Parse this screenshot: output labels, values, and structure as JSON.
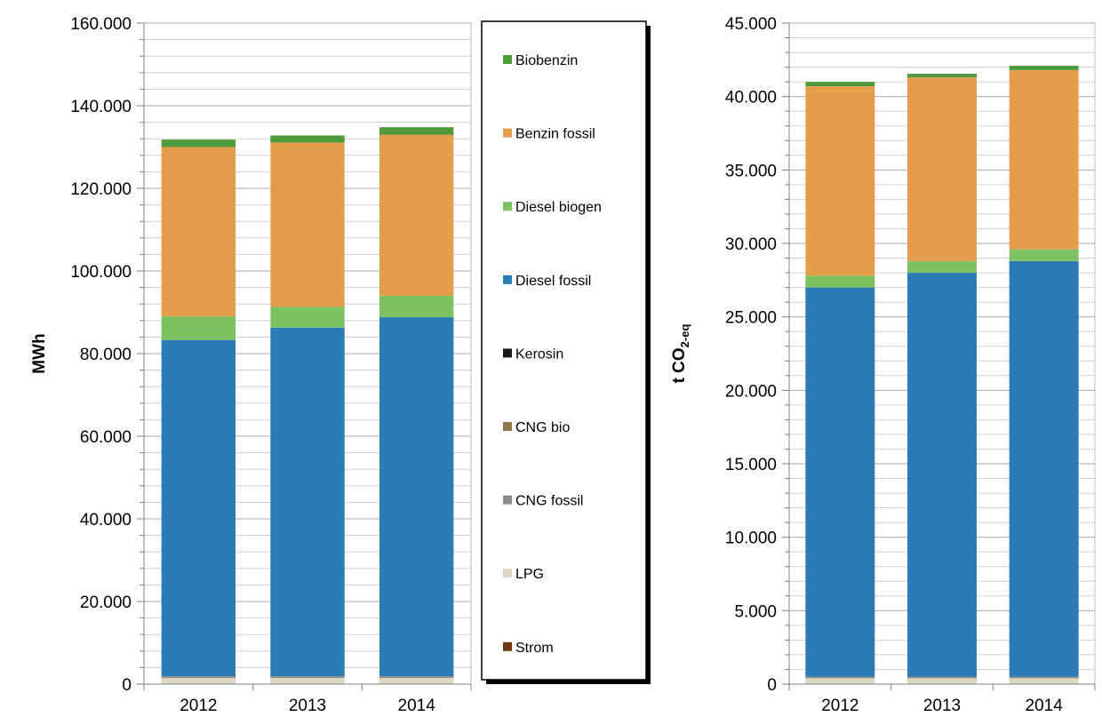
{
  "colors": {
    "Strom": "#6b3a10",
    "LPG": "#dcd6c2",
    "CNG fossil": "#8a8a8a",
    "CNG bio": "#8a7a4a",
    "Kerosin": "#1a1a1a",
    "Diesel fossil": "#2b7bb5",
    "Diesel biogen": "#7cc261",
    "Benzin fossil": "#e49d4b",
    "Biobenzin": "#4f9a3c"
  },
  "legend": {
    "items": [
      "Biobenzin",
      "Benzin fossil",
      "Diesel biogen",
      "Diesel fossil",
      "Kerosin",
      "CNG bio",
      "CNG fossil",
      "LPG",
      "Strom"
    ]
  },
  "chart_data": [
    {
      "type": "bar",
      "stacked": true,
      "categories": [
        "2012",
        "2013",
        "2014"
      ],
      "ylabel": "MWh",
      "ylim": [
        0,
        160000
      ],
      "yticks": [
        "0",
        "20.000",
        "40.000",
        "60.000",
        "80.000",
        "100.000",
        "120.000",
        "140.000",
        "160.000"
      ],
      "grid": true,
      "series": [
        {
          "name": "Strom",
          "values": [
            0,
            0,
            0
          ]
        },
        {
          "name": "LPG",
          "values": [
            1500,
            1500,
            1500
          ]
        },
        {
          "name": "CNG fossil",
          "values": [
            300,
            300,
            300
          ]
        },
        {
          "name": "CNG bio",
          "values": [
            100,
            100,
            100
          ]
        },
        {
          "name": "Kerosin",
          "values": [
            0,
            0,
            0
          ]
        },
        {
          "name": "Diesel fossil",
          "values": [
            81400,
            84400,
            86900
          ]
        },
        {
          "name": "Diesel biogen",
          "values": [
            5700,
            5000,
            5200
          ]
        },
        {
          "name": "Benzin fossil",
          "values": [
            41000,
            39800,
            39000
          ]
        },
        {
          "name": "Biobenzin",
          "values": [
            1800,
            1700,
            1800
          ]
        }
      ]
    },
    {
      "type": "bar",
      "stacked": true,
      "categories": [
        "2012",
        "2013",
        "2014"
      ],
      "ylabel": "t CO2-eq",
      "ylim": [
        0,
        45000
      ],
      "yticks": [
        "0",
        "5.000",
        "10.000",
        "15.000",
        "20.000",
        "25.000",
        "30.000",
        "35.000",
        "40.000",
        "45.000"
      ],
      "grid": true,
      "series": [
        {
          "name": "Strom",
          "values": [
            0,
            0,
            0
          ]
        },
        {
          "name": "LPG",
          "values": [
            400,
            400,
            400
          ]
        },
        {
          "name": "CNG fossil",
          "values": [
            80,
            80,
            80
          ]
        },
        {
          "name": "CNG bio",
          "values": [
            20,
            20,
            20
          ]
        },
        {
          "name": "Kerosin",
          "values": [
            0,
            0,
            0
          ]
        },
        {
          "name": "Diesel fossil",
          "values": [
            26500,
            27500,
            28300
          ]
        },
        {
          "name": "Diesel biogen",
          "values": [
            800,
            800,
            800
          ]
        },
        {
          "name": "Benzin fossil",
          "values": [
            12900,
            12500,
            12200
          ]
        },
        {
          "name": "Biobenzin",
          "values": [
            300,
            250,
            300
          ]
        }
      ]
    }
  ]
}
